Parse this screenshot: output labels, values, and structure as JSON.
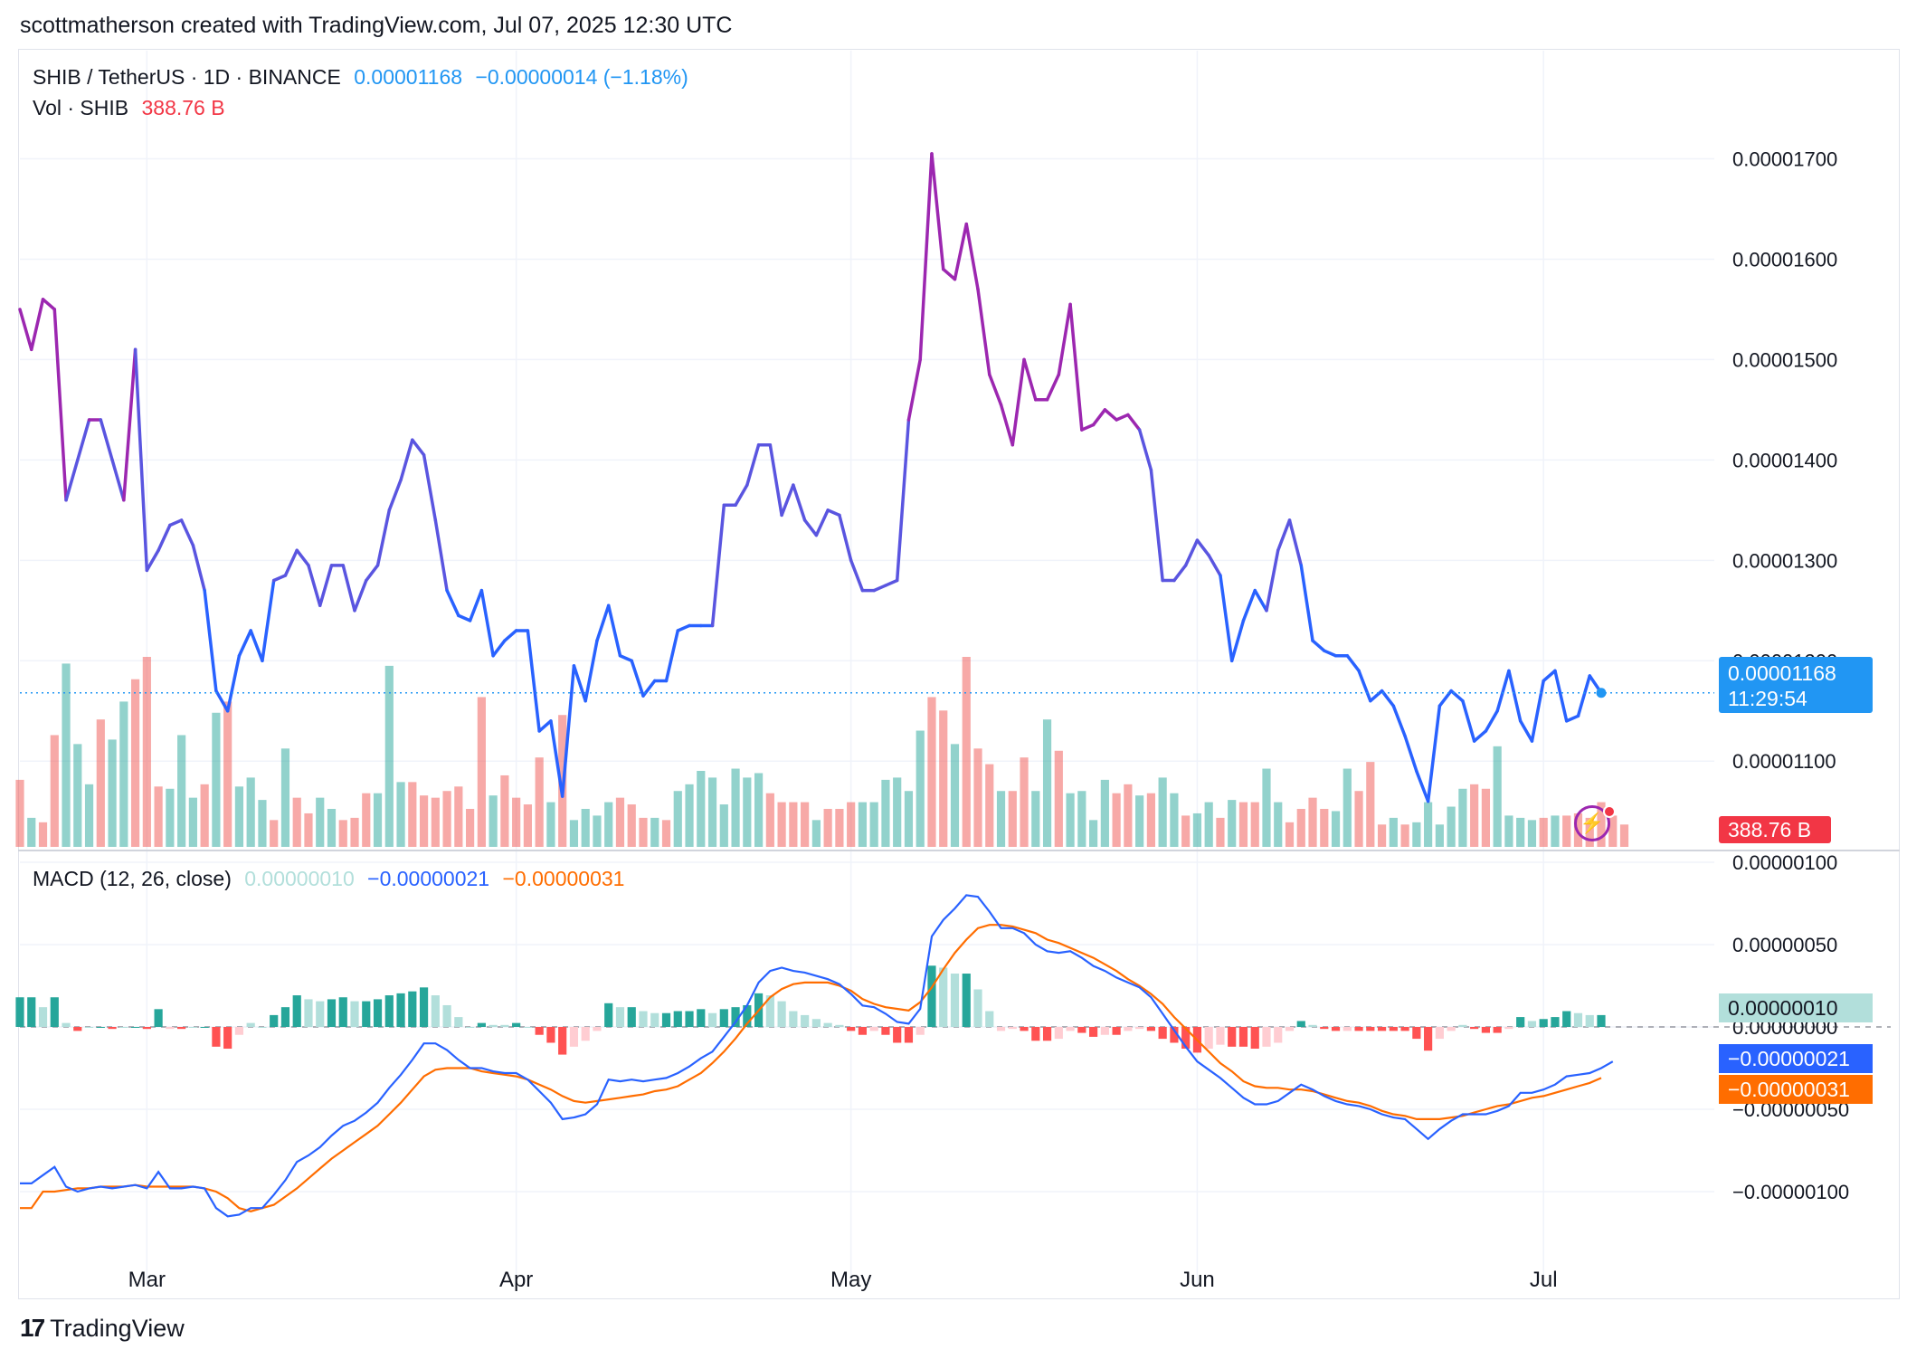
{
  "header": {
    "text": "scottmatherson created with TradingView.com, Jul 07, 2025 12:30 UTC"
  },
  "legend": {
    "symbol": "SHIB / TetherUS · 1D · BINANCE",
    "price": "0.00001168",
    "change": "−0.00000014 (−1.18%)",
    "vol_label": "Vol · SHIB",
    "vol_value": "388.76 B",
    "macd_label": "MACD (12, 26, close)",
    "macd_hist": "0.00000010",
    "macd_line": "−0.00000021",
    "macd_signal": "−0.00000031"
  },
  "badges": {
    "price": "0.00001168",
    "countdown": "11:29:54",
    "volume": "388.76 B",
    "hist": "0.00000010",
    "macd": "−0.00000021",
    "signal": "−0.00000031"
  },
  "footer": {
    "brand": "TradingView"
  },
  "colors": {
    "price_line": "#2962ff",
    "price_line_high": "#9c27b0",
    "vol_up": "#26a69a",
    "vol_down": "#ef5350",
    "macd_line": "#2962ff",
    "signal_line": "#ff6d00",
    "hist_up_strong": "#26a69a",
    "hist_up_weak": "#b2dfdb",
    "hist_down_strong": "#ff5252",
    "hist_down_weak": "#ffcdd2",
    "badge_blue": "#2196f3",
    "badge_red": "#f23645"
  },
  "chart_data": [
    {
      "type": "line",
      "title": "SHIB / TetherUS · 1D · BINANCE",
      "x_ticks": [
        "Mar",
        "Apr",
        "May",
        "Jun",
        "Jul"
      ],
      "y_ticks": [
        "0.00001100",
        "0.00001200",
        "0.00001300",
        "0.00001400",
        "0.00001500",
        "0.00001600",
        "0.00001700"
      ],
      "ylim": [
        1.02e-05,
        1.75e-05
      ],
      "last_price": 1.168e-05,
      "series": [
        {
          "values": [
            15.5,
            15.1,
            15.6,
            15.5,
            13.6,
            14.0,
            14.4,
            14.4,
            14.0,
            13.6,
            15.1,
            12.9,
            13.1,
            13.35,
            13.4,
            13.15,
            12.7,
            11.7,
            11.5,
            12.05,
            12.3,
            12.0,
            12.8,
            12.85,
            13.1,
            12.95,
            12.55,
            12.95,
            12.95,
            12.5,
            12.8,
            12.95,
            13.5,
            13.8,
            14.2,
            14.05,
            13.4,
            12.7,
            12.45,
            12.4,
            12.7,
            12.05,
            12.2,
            12.3,
            12.3,
            11.3,
            11.4,
            10.65,
            11.95,
            11.6,
            12.2,
            12.55,
            12.05,
            12.0,
            11.65,
            11.8,
            11.8,
            12.3,
            12.35,
            12.35,
            12.35,
            13.55,
            13.55,
            13.75,
            14.15,
            14.15,
            13.45,
            13.75,
            13.4,
            13.25,
            13.5,
            13.45,
            13.0,
            12.7,
            12.7,
            12.75,
            12.8,
            14.4,
            15.0,
            17.05,
            15.9,
            15.8,
            16.35,
            15.7,
            14.85,
            14.55,
            14.15,
            15.0,
            14.6,
            14.6,
            14.85,
            15.55,
            14.3,
            14.35,
            14.5,
            14.4,
            14.45,
            14.3,
            13.9,
            12.8,
            12.8,
            12.95,
            13.2,
            13.05,
            12.85,
            12.0,
            12.4,
            12.7,
            12.5,
            13.1,
            13.4,
            12.95,
            12.2,
            12.1,
            12.05,
            12.05,
            11.9,
            11.6,
            11.7,
            11.55,
            11.25,
            10.9,
            10.6,
            11.55,
            11.7,
            11.6,
            11.2,
            11.3,
            11.5,
            11.9,
            11.4,
            11.2,
            11.8,
            11.9,
            11.4,
            11.45,
            11.85,
            11.68
          ]
        }
      ]
    },
    {
      "type": "bar",
      "title": "Vol · SHIB",
      "last_value": "388.76 B",
      "up": [
        false,
        true,
        false,
        false,
        true,
        true,
        true,
        false,
        true,
        true,
        false,
        false,
        false,
        true,
        true,
        true,
        false,
        true,
        false,
        true,
        true,
        true,
        false,
        true,
        false,
        false,
        true,
        true,
        false,
        false,
        false,
        true,
        true,
        true,
        false,
        false,
        false,
        false,
        false,
        false,
        false,
        true,
        false,
        false,
        false,
        false,
        true,
        false,
        true,
        true,
        true,
        true,
        false,
        false,
        false,
        true,
        false,
        true,
        true,
        true,
        true,
        true,
        true,
        true,
        true,
        false,
        false,
        false,
        false,
        true,
        false,
        false,
        false,
        true,
        true,
        true,
        true,
        true,
        true,
        false,
        false,
        true,
        false,
        false,
        false,
        true,
        false,
        false,
        true,
        true,
        false,
        true,
        true,
        true,
        true,
        false,
        false,
        true,
        false,
        true,
        true,
        false,
        true,
        true,
        false,
        true,
        false,
        false,
        true,
        true,
        false,
        false,
        false,
        false,
        true,
        true,
        false,
        false,
        false,
        true,
        false,
        true,
        true,
        true,
        true,
        true,
        false,
        false,
        true,
        true,
        true,
        true,
        false,
        true
      ],
      "values": [
        30,
        13,
        11,
        50,
        82,
        46,
        28,
        57,
        48,
        65,
        75,
        85,
        27,
        26,
        50,
        22,
        28,
        60,
        65,
        27,
        31,
        21,
        12,
        44,
        22,
        15,
        22,
        17,
        12,
        13,
        24,
        24,
        81,
        29,
        29,
        23,
        22,
        25,
        27,
        17,
        67,
        23,
        32,
        22,
        19,
        40,
        20,
        59,
        12,
        17,
        14,
        20,
        22,
        19,
        13,
        13,
        12,
        25,
        28,
        34,
        31,
        19,
        35,
        31,
        33,
        24,
        20,
        20,
        20,
        12,
        17,
        17,
        20,
        20,
        20,
        30,
        31,
        25,
        52,
        67,
        61,
        46,
        85,
        44,
        37,
        25,
        25,
        40,
        25,
        57,
        43,
        24,
        25,
        12,
        30,
        24,
        28,
        23,
        24,
        31,
        24,
        14,
        15,
        20,
        13,
        21,
        20,
        20,
        35,
        20,
        11,
        17,
        22,
        17,
        16,
        35,
        25,
        38,
        10,
        13,
        10,
        11,
        20,
        10,
        18,
        26,
        28,
        26,
        45,
        14,
        13,
        12,
        13,
        14,
        14,
        15,
        13,
        20,
        14,
        10
      ]
    },
    {
      "type": "line",
      "title": "MACD (12, 26, close)",
      "y_ticks": [
        "−0.00000100",
        "−0.00000050",
        "0.00000000",
        "0.00000050",
        "0.00000100"
      ],
      "ylim": [
        -1.3e-06,
        1.1e-06
      ],
      "series": [
        {
          "name": "MACD",
          "values": [
            -0.95,
            -0.95,
            -0.9,
            -0.85,
            -0.97,
            -1.0,
            -0.98,
            -0.97,
            -0.98,
            -0.97,
            -0.96,
            -0.98,
            -0.88,
            -0.98,
            -0.98,
            -0.97,
            -0.98,
            -1.1,
            -1.15,
            -1.14,
            -1.1,
            -1.1,
            -1.02,
            -0.93,
            -0.82,
            -0.78,
            -0.73,
            -0.66,
            -0.6,
            -0.57,
            -0.52,
            -0.46,
            -0.37,
            -0.29,
            -0.2,
            -0.1,
            -0.1,
            -0.14,
            -0.2,
            -0.25,
            -0.25,
            -0.27,
            -0.28,
            -0.28,
            -0.32,
            -0.39,
            -0.46,
            -0.56,
            -0.55,
            -0.53,
            -0.47,
            -0.32,
            -0.33,
            -0.32,
            -0.33,
            -0.32,
            -0.31,
            -0.28,
            -0.24,
            -0.19,
            -0.15,
            -0.06,
            0.03,
            0.13,
            0.27,
            0.34,
            0.36,
            0.34,
            0.33,
            0.31,
            0.29,
            0.26,
            0.2,
            0.13,
            0.12,
            0.08,
            0.03,
            0.02,
            0.11,
            0.55,
            0.65,
            0.72,
            0.8,
            0.79,
            0.7,
            0.6,
            0.6,
            0.57,
            0.5,
            0.46,
            0.45,
            0.46,
            0.42,
            0.37,
            0.34,
            0.3,
            0.27,
            0.24,
            0.18,
            0.08,
            -0.02,
            -0.12,
            -0.21,
            -0.26,
            -0.31,
            -0.37,
            -0.43,
            -0.47,
            -0.47,
            -0.45,
            -0.4,
            -0.35,
            -0.38,
            -0.42,
            -0.45,
            -0.47,
            -0.48,
            -0.5,
            -0.53,
            -0.55,
            -0.56,
            -0.62,
            -0.68,
            -0.62,
            -0.57,
            -0.53,
            -0.53,
            -0.53,
            -0.51,
            -0.48,
            -0.4,
            -0.4,
            -0.38,
            -0.35,
            -0.3,
            -0.29,
            -0.28,
            -0.25,
            -0.21
          ]
        },
        {
          "name": "Signal",
          "values": [
            -1.1,
            -1.1,
            -1.0,
            -1.0,
            -0.99,
            -0.98,
            -0.98,
            -0.97,
            -0.97,
            -0.97,
            -0.96,
            -0.97,
            -0.97,
            -0.97,
            -0.97,
            -0.97,
            -0.98,
            -1.0,
            -1.04,
            -1.1,
            -1.12,
            -1.1,
            -1.08,
            -1.03,
            -0.98,
            -0.92,
            -0.86,
            -0.8,
            -0.75,
            -0.7,
            -0.65,
            -0.6,
            -0.53,
            -0.46,
            -0.38,
            -0.3,
            -0.26,
            -0.25,
            -0.25,
            -0.25,
            -0.27,
            -0.28,
            -0.29,
            -0.3,
            -0.32,
            -0.35,
            -0.38,
            -0.42,
            -0.45,
            -0.46,
            -0.45,
            -0.44,
            -0.43,
            -0.42,
            -0.41,
            -0.39,
            -0.38,
            -0.36,
            -0.32,
            -0.28,
            -0.22,
            -0.15,
            -0.07,
            0.02,
            0.1,
            0.18,
            0.23,
            0.26,
            0.27,
            0.27,
            0.27,
            0.25,
            0.22,
            0.17,
            0.14,
            0.12,
            0.11,
            0.1,
            0.15,
            0.24,
            0.35,
            0.45,
            0.53,
            0.6,
            0.62,
            0.62,
            0.61,
            0.59,
            0.57,
            0.53,
            0.51,
            0.48,
            0.45,
            0.42,
            0.38,
            0.34,
            0.29,
            0.25,
            0.2,
            0.14,
            0.06,
            -0.01,
            -0.08,
            -0.15,
            -0.22,
            -0.27,
            -0.33,
            -0.36,
            -0.37,
            -0.37,
            -0.38,
            -0.38,
            -0.39,
            -0.41,
            -0.43,
            -0.45,
            -0.46,
            -0.48,
            -0.51,
            -0.53,
            -0.54,
            -0.56,
            -0.56,
            -0.56,
            -0.55,
            -0.54,
            -0.52,
            -0.5,
            -0.48,
            -0.47,
            -0.45,
            -0.43,
            -0.42,
            -0.4,
            -0.38,
            -0.36,
            -0.34,
            -0.31
          ]
        }
      ]
    }
  ]
}
